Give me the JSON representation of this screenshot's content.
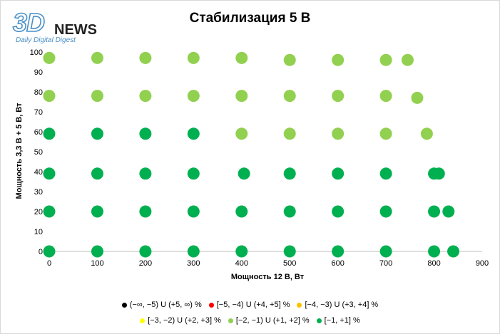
{
  "logo": {
    "mark": "3D",
    "name": "NEWS",
    "tagline": "Daily Digital Digest"
  },
  "chart_data": {
    "type": "scatter",
    "title": "Стабилизация 5 В",
    "xlabel": "Мощность  12 В, Вт",
    "ylabel": "Мощность  3,3 В + 5 В, Вт",
    "xlim": [
      0,
      900
    ],
    "ylim": [
      0,
      100
    ],
    "x_ticks": [
      0,
      100,
      200,
      300,
      400,
      500,
      600,
      700,
      800,
      900
    ],
    "y_ticks": [
      0,
      10,
      20,
      30,
      40,
      50,
      60,
      70,
      80,
      90,
      100
    ],
    "grid": false,
    "legend_position": "bottom",
    "series": [
      {
        "name": "(−∞, −5) U (+5, ∞) %",
        "color": "#000000",
        "points": []
      },
      {
        "name": "[−5, −4) U (+4, +5] %",
        "color": "#ff0000",
        "points": []
      },
      {
        "name": "[−4, −3) U (+3, +4] %",
        "color": "#ffc000",
        "points": []
      },
      {
        "name": "[−3, −2) U (+2, +3] %",
        "color": "#ffff00",
        "points": []
      },
      {
        "name": "[−2, −1) U (+1, +2] %",
        "color": "#92d050",
        "points": [
          [
            0,
            97
          ],
          [
            100,
            97
          ],
          [
            200,
            97
          ],
          [
            300,
            97
          ],
          [
            400,
            97
          ],
          [
            500,
            96
          ],
          [
            600,
            96
          ],
          [
            700,
            96
          ],
          [
            745,
            96
          ],
          [
            0,
            78
          ],
          [
            100,
            78
          ],
          [
            200,
            78
          ],
          [
            300,
            78
          ],
          [
            400,
            78
          ],
          [
            500,
            78
          ],
          [
            600,
            78
          ],
          [
            700,
            78
          ],
          [
            765,
            77
          ],
          [
            400,
            59
          ],
          [
            500,
            59
          ],
          [
            600,
            59
          ],
          [
            700,
            59
          ],
          [
            785,
            59
          ]
        ]
      },
      {
        "name": "[−1, +1] %",
        "color": "#00b050",
        "points": [
          [
            0,
            59
          ],
          [
            100,
            59
          ],
          [
            200,
            59
          ],
          [
            300,
            59
          ],
          [
            0,
            39
          ],
          [
            100,
            39
          ],
          [
            200,
            39
          ],
          [
            300,
            39
          ],
          [
            405,
            39
          ],
          [
            500,
            39
          ],
          [
            600,
            39
          ],
          [
            700,
            39
          ],
          [
            800,
            39
          ],
          [
            810,
            39
          ],
          [
            0,
            20
          ],
          [
            100,
            20
          ],
          [
            200,
            20
          ],
          [
            300,
            20
          ],
          [
            400,
            20
          ],
          [
            500,
            20
          ],
          [
            600,
            20
          ],
          [
            700,
            20
          ],
          [
            800,
            20
          ],
          [
            830,
            20
          ],
          [
            0,
            0
          ],
          [
            100,
            0
          ],
          [
            200,
            0
          ],
          [
            300,
            0
          ],
          [
            400,
            0
          ],
          [
            500,
            0
          ],
          [
            600,
            0
          ],
          [
            700,
            0
          ],
          [
            800,
            0
          ],
          [
            840,
            0
          ]
        ]
      }
    ]
  }
}
